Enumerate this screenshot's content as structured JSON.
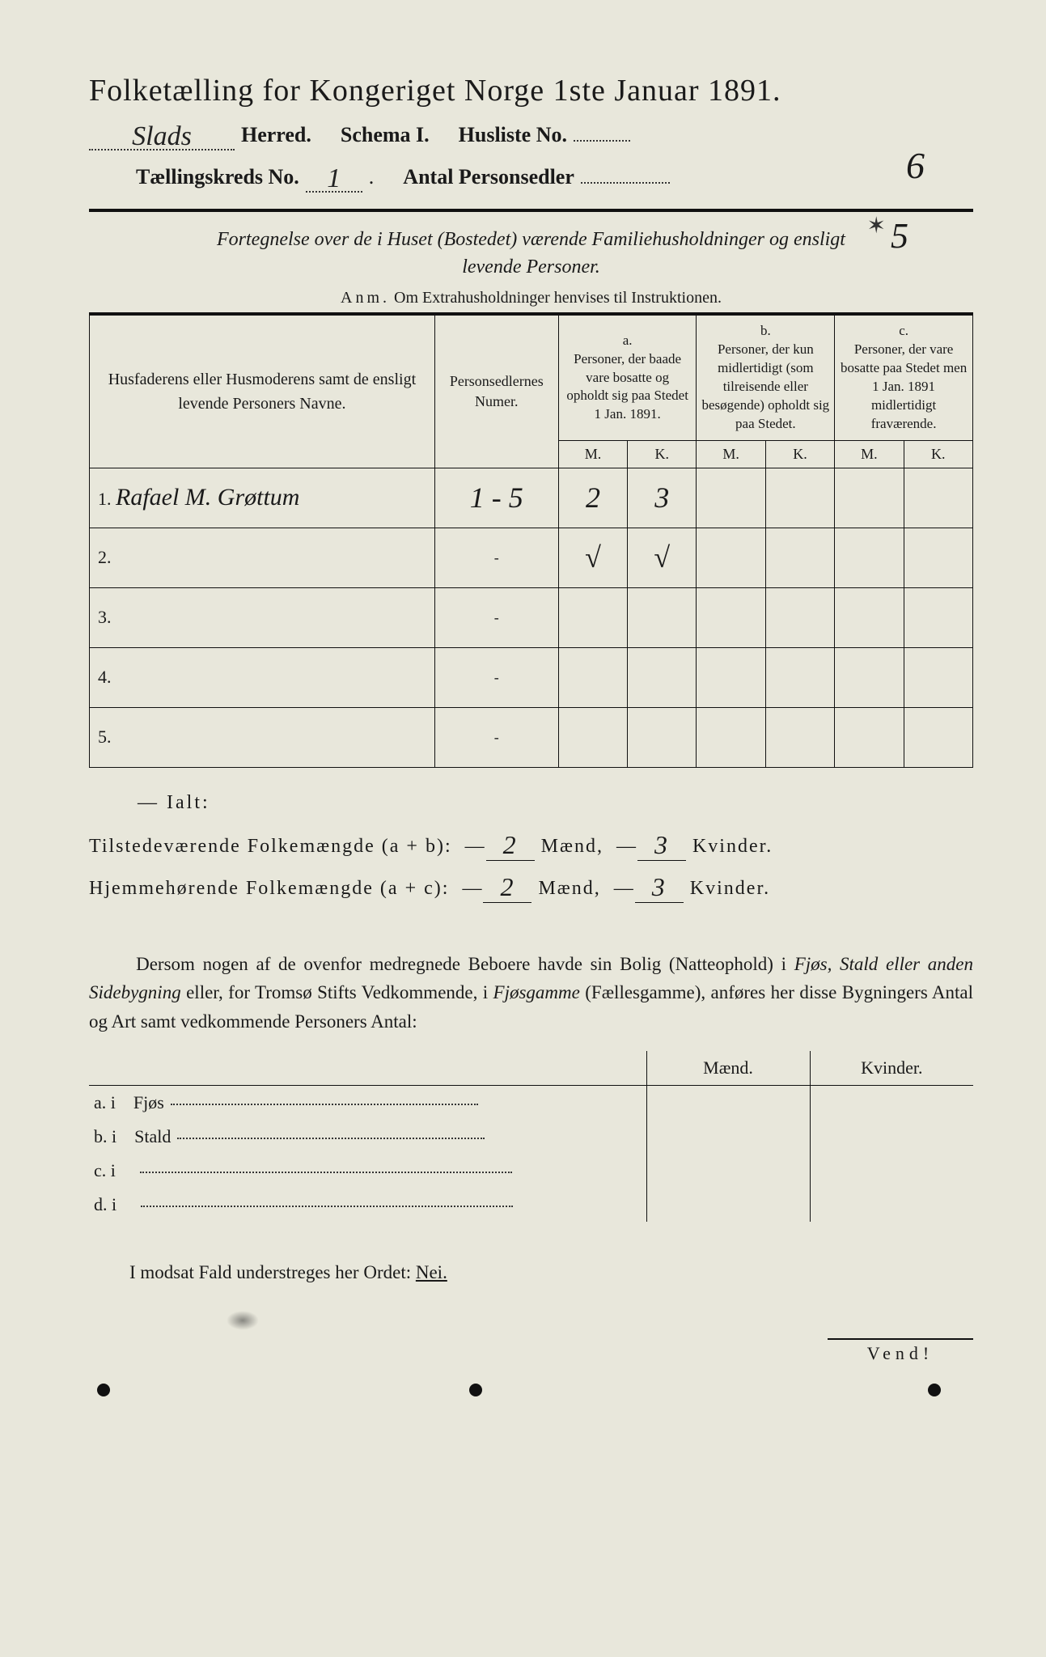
{
  "header": {
    "title": "Folketælling for Kongeriget Norge 1ste Januar 1891.",
    "herred_value": "Slads",
    "herred_label": "Herred.",
    "schema_label": "Schema I.",
    "husliste_label": "Husliste No.",
    "husliste_value": "6",
    "kreds_label": "Tællingskreds No.",
    "kreds_value": "1",
    "antal_label": "Antal Personsedler",
    "antal_value": "5",
    "antal_scribble": "✶"
  },
  "subtitle": {
    "line1": "Fortegnelse over de i Huset (Bostedet) værende Familiehusholdninger og ensligt",
    "line2": "levende Personer.",
    "anm_prefix": "Anm.",
    "anm_text": "Om Extrahusholdninger henvises til Instruktionen."
  },
  "table": {
    "col1": "Husfaderens eller Husmoderens samt de ensligt levende Personers Navne.",
    "col2": "Personsedlernes Numer.",
    "col_a_label": "a.",
    "col_a": "Personer, der baade vare bosatte og opholdt sig paa Stedet 1 Jan. 1891.",
    "col_b_label": "b.",
    "col_b": "Personer, der kun midlertidigt (som tilreisende eller besøgende) opholdt sig paa Stedet.",
    "col_c_label": "c.",
    "col_c": "Personer, der vare bosatte paa Stedet men 1 Jan. 1891 midlertidigt fraværende.",
    "m": "M.",
    "k": "K.",
    "rows": [
      {
        "n": "1.",
        "name": "Rafael M. Grøttum",
        "numer": "1 - 5",
        "am": "2",
        "ak": "3",
        "bm": "",
        "bk": "",
        "cm": "",
        "ck": ""
      },
      {
        "n": "2.",
        "name": "",
        "numer": "-",
        "am": "√",
        "ak": "√",
        "bm": "",
        "bk": "",
        "cm": "",
        "ck": ""
      },
      {
        "n": "3.",
        "name": "",
        "numer": "-",
        "am": "",
        "ak": "",
        "bm": "",
        "bk": "",
        "cm": "",
        "ck": ""
      },
      {
        "n": "4.",
        "name": "",
        "numer": "-",
        "am": "",
        "ak": "",
        "bm": "",
        "bk": "",
        "cm": "",
        "ck": ""
      },
      {
        "n": "5.",
        "name": "",
        "numer": "-",
        "am": "",
        "ak": "",
        "bm": "",
        "bk": "",
        "cm": "",
        "ck": ""
      }
    ]
  },
  "ialt": {
    "title": "Ialt:",
    "line1_a": "Tilstedeværende Folkemængde (a + b):",
    "line2_a": "Hjemmehørende Folkemængde (a + c):",
    "maend": "Mænd,",
    "kvinder": "Kvinder.",
    "v1m": "2",
    "v1k": "3",
    "v2m": "2",
    "v2k": "3"
  },
  "para": {
    "text1": "Dersom nogen af de ovenfor medregnede Beboere havde sin Bolig (Natteophold) i ",
    "it1": "Fjøs, Stald eller anden Sidebygning",
    "text2": " eller, for Tromsø Stifts Vedkommende, i ",
    "it2": "Fjøsgamme",
    "text3": " (Fællesgamme), anføres her disse Bygningers Antal og Art samt vedkommende Personers Antal:"
  },
  "bottom_table": {
    "maend": "Mænd.",
    "kvinder": "Kvinder.",
    "rows": [
      {
        "label": "a.  i",
        "name": "Fjøs"
      },
      {
        "label": "b.  i",
        "name": "Stald"
      },
      {
        "label": "c.  i",
        "name": ""
      },
      {
        "label": "d.  i",
        "name": ""
      }
    ]
  },
  "nei": {
    "text": "I modsat Fald understreges her Ordet: ",
    "word": "Nei."
  },
  "vend": "Vend!",
  "colors": {
    "bg": "#e8e7db",
    "ink": "#1a1a1a",
    "rule": "#111111"
  }
}
